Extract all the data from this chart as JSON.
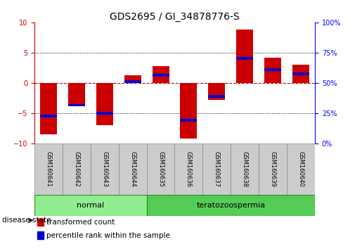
{
  "title": "GDS2695 / GI_34878776-S",
  "samples": [
    "GSM160641",
    "GSM160642",
    "GSM160643",
    "GSM160644",
    "GSM160635",
    "GSM160636",
    "GSM160637",
    "GSM160638",
    "GSM160639",
    "GSM160640"
  ],
  "red_values": [
    -8.5,
    -3.5,
    -7.0,
    1.2,
    2.8,
    -9.2,
    -2.8,
    8.8,
    4.2,
    3.0
  ],
  "blue_values": [
    -5.5,
    -3.7,
    -5.0,
    0.2,
    1.2,
    -6.2,
    -2.2,
    4.0,
    2.2,
    1.5
  ],
  "groups": [
    {
      "label": "normal",
      "start": 0,
      "end": 3,
      "color": "#90EE90"
    },
    {
      "label": "teratozoospermia",
      "start": 4,
      "end": 9,
      "color": "#55CC55"
    }
  ],
  "ylim": [
    -10,
    10
  ],
  "yticks_left": [
    -10,
    -5,
    0,
    5,
    10
  ],
  "red_color": "#CC0000",
  "blue_color": "#0000CC",
  "bar_width": 0.6,
  "blue_bar_height": 0.45,
  "grid_color": "black",
  "zero_line_color": "#CC0000",
  "bg_color": "white",
  "title_fontsize": 10,
  "tick_fontsize": 7,
  "sample_fontsize": 6,
  "label_fontsize": 8,
  "legend_fontsize": 7.5,
  "disease_label": "disease state",
  "sample_box_color": "#CCCCCC",
  "sample_box_edge": "#888888",
  "group_edge_color": "#228B22"
}
